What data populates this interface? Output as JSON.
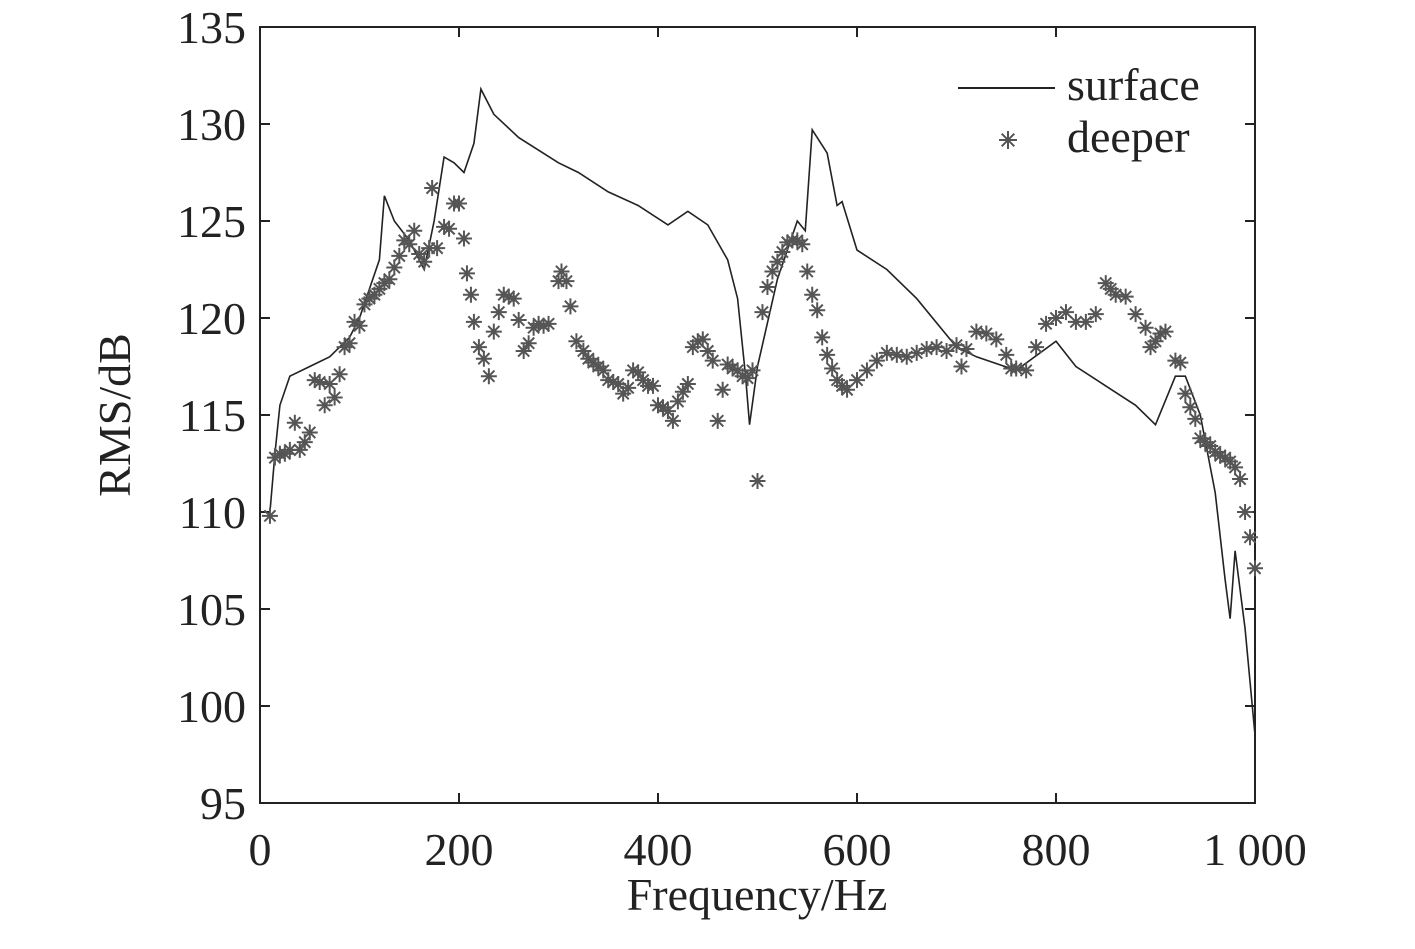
{
  "chart_data": {
    "type": "line",
    "xlabel": "Frequency/Hz",
    "ylabel": "RMS/dB",
    "xlim": [
      0,
      1000
    ],
    "ylim": [
      95,
      135
    ],
    "xticks": [
      0,
      200,
      400,
      600,
      800,
      {
        "value": 1000,
        "label": "1 000"
      }
    ],
    "yticks": [
      95,
      100,
      105,
      110,
      115,
      120,
      125,
      130,
      135
    ],
    "legend": "upper right",
    "series": [
      {
        "name": "surface",
        "type": "line",
        "color": "#222222",
        "x": [
          10,
          15,
          20,
          30,
          50,
          70,
          90,
          100,
          110,
          120,
          125,
          135,
          150,
          165,
          175,
          185,
          195,
          205,
          215,
          222,
          235,
          260,
          300,
          320,
          350,
          380,
          410,
          430,
          450,
          470,
          480,
          488,
          492,
          500,
          520,
          540,
          548,
          555,
          570,
          580,
          585,
          600,
          630,
          660,
          700,
          720,
          760,
          800,
          820,
          850,
          880,
          900,
          920,
          930,
          945,
          960,
          970,
          975,
          980,
          990,
          1000
        ],
        "values": [
          110,
          113,
          115.5,
          117,
          117.5,
          118,
          119,
          120,
          121.5,
          123,
          126.3,
          125,
          124,
          122.5,
          125,
          128.3,
          128,
          127.5,
          129,
          131.8,
          130.5,
          129.3,
          128,
          127.5,
          126.5,
          125.8,
          124.8,
          125.5,
          124.8,
          123,
          121,
          117,
          114.5,
          117.5,
          122,
          125,
          124.5,
          129.7,
          128.5,
          125.8,
          126,
          123.5,
          122.5,
          121,
          118.5,
          118,
          117.3,
          118.8,
          117.5,
          116.5,
          115.5,
          114.5,
          117,
          117,
          115,
          111,
          106.5,
          104.5,
          108,
          104,
          98.5
        ]
      },
      {
        "name": "deeper",
        "type": "scatter",
        "color": "#555555",
        "x": [
          10,
          15,
          20,
          25,
          30,
          35,
          40,
          45,
          50,
          55,
          60,
          65,
          70,
          75,
          80,
          85,
          90,
          95,
          100,
          105,
          110,
          115,
          120,
          125,
          130,
          135,
          140,
          145,
          150,
          155,
          160,
          165,
          170,
          173,
          178,
          185,
          190,
          195,
          200,
          205,
          208,
          212,
          215,
          220,
          225,
          230,
          235,
          240,
          245,
          250,
          255,
          260,
          265,
          270,
          275,
          280,
          285,
          290,
          300,
          303,
          308,
          312,
          318,
          325,
          330,
          335,
          340,
          345,
          350,
          355,
          360,
          365,
          370,
          375,
          380,
          385,
          390,
          395,
          400,
          405,
          410,
          415,
          420,
          425,
          430,
          435,
          440,
          445,
          450,
          455,
          460,
          465,
          470,
          475,
          480,
          485,
          490,
          495,
          500,
          505,
          510,
          515,
          520,
          525,
          530,
          535,
          540,
          545,
          550,
          555,
          560,
          565,
          570,
          575,
          580,
          585,
          590,
          600,
          610,
          620,
          630,
          640,
          650,
          660,
          670,
          680,
          690,
          700,
          705,
          710,
          720,
          730,
          740,
          750,
          755,
          760,
          770,
          780,
          790,
          800,
          810,
          820,
          830,
          840,
          850,
          855,
          860,
          870,
          880,
          890,
          895,
          900,
          905,
          910,
          920,
          925,
          930,
          935,
          940,
          945,
          950,
          955,
          960,
          965,
          970,
          975,
          980,
          985,
          990,
          995,
          1000
        ],
        "values": [
          109.8,
          112.8,
          113,
          113,
          113.2,
          114.6,
          113.2,
          113.6,
          114.1,
          116.8,
          116.7,
          115.5,
          116.6,
          115.9,
          117.1,
          118.5,
          118.7,
          119.8,
          119.6,
          120.7,
          121,
          121.2,
          121.5,
          121.8,
          122,
          122.6,
          123.2,
          124,
          123.8,
          124.5,
          123.3,
          122.9,
          123.6,
          126.7,
          123.6,
          124.7,
          124.6,
          125.9,
          125.9,
          124.1,
          122.3,
          121.2,
          119.8,
          118.5,
          117.9,
          117,
          119.3,
          120.3,
          121.2,
          121.1,
          121,
          119.9,
          118.3,
          118.7,
          119.5,
          119.7,
          119.6,
          119.7,
          121.9,
          122.4,
          121.9,
          120.6,
          118.8,
          118.3,
          117.9,
          117.7,
          117.5,
          117.3,
          116.8,
          116.7,
          116.6,
          116.1,
          116.4,
          117.3,
          117.2,
          116.8,
          116.5,
          116.5,
          115.5,
          115.4,
          115.2,
          114.7,
          115.7,
          116.2,
          116.6,
          118.5,
          118.8,
          118.9,
          118.3,
          117.8,
          114.7,
          116.3,
          117.6,
          117.4,
          117.3,
          117,
          116.9,
          117.3,
          111.6,
          120.3,
          121.6,
          122.4,
          122.9,
          123.4,
          123.9,
          124,
          124,
          123.8,
          122.4,
          121.2,
          120.4,
          119,
          118.1,
          117.4,
          116.8,
          116.5,
          116.3,
          116.8,
          117.3,
          117.8,
          118.2,
          118.1,
          118,
          118.2,
          118.4,
          118.5,
          118.3,
          118.6,
          117.5,
          118.4,
          119.3,
          119.2,
          118.9,
          118.1,
          117.4,
          117.4,
          117.3,
          118.5,
          119.7,
          120,
          120.3,
          119.8,
          119.8,
          120.2,
          121.8,
          121.5,
          121.2,
          121.1,
          120.2,
          119.5,
          118.5,
          118.8,
          119.2,
          119.3,
          117.8,
          117.7,
          116.1,
          115.4,
          114.8,
          113.8,
          113.6,
          113.4,
          113.1,
          112.9,
          112.8,
          112.6,
          112.3,
          111.7,
          110,
          108.7,
          107.1
        ]
      }
    ]
  }
}
